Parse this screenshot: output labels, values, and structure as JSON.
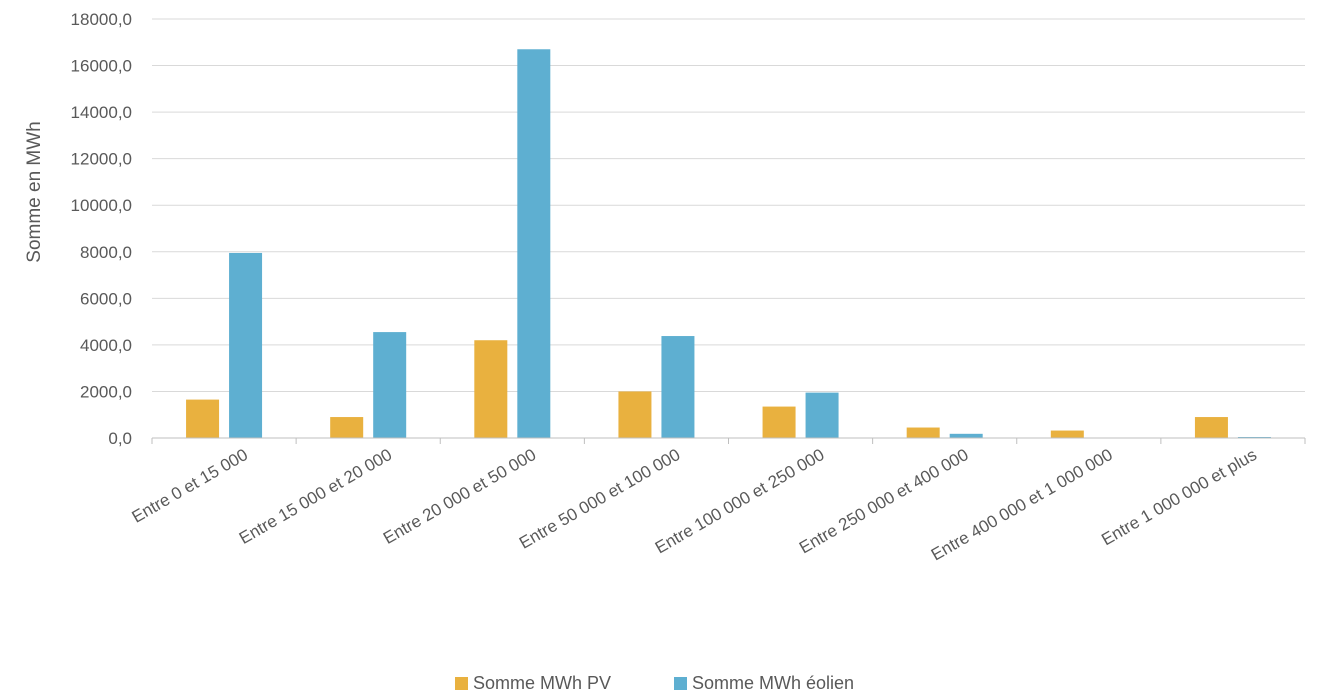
{
  "chart_data": {
    "type": "bar",
    "title": "",
    "xlabel": "",
    "ylabel": "Somme en MWh",
    "ylim": [
      0,
      18000
    ],
    "yticks": [
      0,
      2000,
      4000,
      6000,
      8000,
      10000,
      12000,
      14000,
      16000,
      18000
    ],
    "ytick_labels": [
      "0,0",
      "2000,0",
      "4000,0",
      "6000,0",
      "8000,0",
      "10000,0",
      "12000,0",
      "14000,0",
      "16000,0",
      "18000,0"
    ],
    "grid": true,
    "legend_position": "bottom",
    "categories": [
      "Entre  0  et  15 000",
      "Entre  15 000  et  20 000",
      "Entre  20 000  et  50 000",
      "Entre  50 000  et  100 000",
      "Entre  100 000  et  250 000",
      "Entre  250 000  et  400 000",
      "Entre  400 000  et 1 000 000",
      "Entre 1 000 000  et plus"
    ],
    "series": [
      {
        "name": "Somme MWh PV",
        "color": "#e9b13f",
        "values": [
          1650,
          900,
          4200,
          2000,
          1350,
          450,
          320,
          900
        ]
      },
      {
        "name": "Somme MWh éolien",
        "color": "#5eafd1",
        "values": [
          7950,
          4550,
          16700,
          4380,
          1950,
          180,
          0,
          40
        ]
      }
    ]
  }
}
